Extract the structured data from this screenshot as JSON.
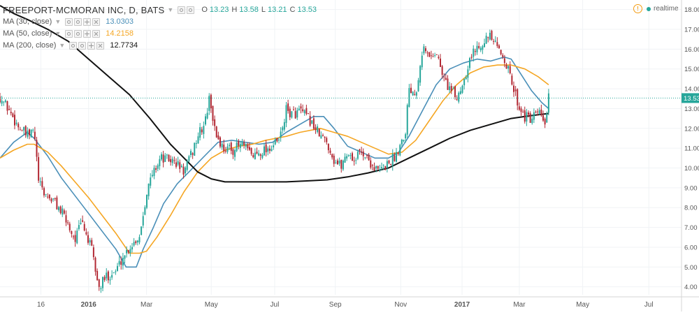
{
  "header": {
    "symbol_title": "FREEPORT-MCMORAN INC, D, BATS",
    "ohlc": [
      {
        "label": "O",
        "value": "13.23"
      },
      {
        "label": "H",
        "value": "13.58"
      },
      {
        "label": "L",
        "value": "13.21"
      },
      {
        "label": "C",
        "value": "13.53"
      }
    ],
    "status_icon": "warning-circle-icon",
    "status_text": "realtime"
  },
  "indicators": [
    {
      "label": "MA (30, close)",
      "value": "13.0303",
      "color": "#4a8fb8"
    },
    {
      "label": "MA (50, close)",
      "value": "14.2158",
      "color": "#f5a623"
    },
    {
      "label": "MA (200, close)",
      "value": "12.7734",
      "color": "#111111"
    }
  ],
  "colors": {
    "up": "#26a69a",
    "down": "#b22833",
    "price_line": "#26a69a",
    "axis_text": "#555555"
  },
  "chart_data": {
    "type": "candlestick",
    "last_price": 13.53,
    "price_label": "13.53",
    "y_axis": {
      "min": 3.6,
      "max": 18.2,
      "ticks": [
        "4.00",
        "5.00",
        "6.00",
        "7.00",
        "8.00",
        "9.00",
        "10.00",
        "11.00",
        "12.00",
        "13.00",
        "14.00",
        "15.00",
        "16.00",
        "17.00",
        "18.00"
      ]
    },
    "x_axis": {
      "ticks": [
        {
          "label": "16",
          "t": 0.06
        },
        {
          "label": "2016",
          "t": 0.13
        },
        {
          "label": "Mar",
          "t": 0.215
        },
        {
          "label": "May",
          "t": 0.31
        },
        {
          "label": "Jul",
          "t": 0.403
        },
        {
          "label": "Sep",
          "t": 0.492
        },
        {
          "label": "Nov",
          "t": 0.588
        },
        {
          "label": "2017",
          "t": 0.678
        },
        {
          "label": "Mar",
          "t": 0.762
        },
        {
          "label": "May",
          "t": 0.855
        },
        {
          "label": "Jul",
          "t": 0.952
        }
      ]
    },
    "close_path": [
      [
        0.0,
        13.6
      ],
      [
        0.012,
        13.0
      ],
      [
        0.025,
        12.2
      ],
      [
        0.04,
        11.6
      ],
      [
        0.05,
        11.9
      ],
      [
        0.057,
        9.2
      ],
      [
        0.065,
        8.7
      ],
      [
        0.08,
        8.3
      ],
      [
        0.095,
        7.5
      ],
      [
        0.11,
        6.4
      ],
      [
        0.12,
        7.3
      ],
      [
        0.135,
        5.8
      ],
      [
        0.145,
        3.9
      ],
      [
        0.155,
        4.5
      ],
      [
        0.17,
        4.8
      ],
      [
        0.18,
        5.5
      ],
      [
        0.19,
        6.0
      ],
      [
        0.205,
        6.6
      ],
      [
        0.215,
        8.8
      ],
      [
        0.225,
        9.8
      ],
      [
        0.235,
        10.5
      ],
      [
        0.25,
        10.4
      ],
      [
        0.26,
        10.2
      ],
      [
        0.27,
        9.8
      ],
      [
        0.28,
        10.6
      ],
      [
        0.29,
        11.6
      ],
      [
        0.3,
        12.2
      ],
      [
        0.308,
        13.6
      ],
      [
        0.315,
        11.9
      ],
      [
        0.325,
        11.1
      ],
      [
        0.34,
        10.9
      ],
      [
        0.355,
        11.2
      ],
      [
        0.37,
        10.6
      ],
      [
        0.385,
        10.9
      ],
      [
        0.4,
        11.1
      ],
      [
        0.41,
        11.4
      ],
      [
        0.42,
        12.9
      ],
      [
        0.43,
        12.7
      ],
      [
        0.44,
        12.9
      ],
      [
        0.455,
        12.4
      ],
      [
        0.47,
        11.6
      ],
      [
        0.48,
        11.3
      ],
      [
        0.49,
        10.4
      ],
      [
        0.5,
        10.1
      ],
      [
        0.51,
        10.8
      ],
      [
        0.52,
        10.4
      ],
      [
        0.53,
        10.9
      ],
      [
        0.545,
        10.2
      ],
      [
        0.555,
        9.8
      ],
      [
        0.565,
        10.1
      ],
      [
        0.58,
        10.6
      ],
      [
        0.595,
        11.9
      ],
      [
        0.6,
        14.1
      ],
      [
        0.61,
        13.8
      ],
      [
        0.62,
        16.1
      ],
      [
        0.63,
        15.6
      ],
      [
        0.64,
        15.9
      ],
      [
        0.65,
        14.6
      ],
      [
        0.66,
        14.0
      ],
      [
        0.67,
        13.5
      ],
      [
        0.68,
        14.4
      ],
      [
        0.69,
        15.6
      ],
      [
        0.7,
        16.1
      ],
      [
        0.71,
        16.5
      ],
      [
        0.72,
        16.6
      ],
      [
        0.73,
        16.0
      ],
      [
        0.74,
        15.6
      ],
      [
        0.75,
        14.4
      ],
      [
        0.76,
        13.3
      ],
      [
        0.765,
        12.9
      ],
      [
        0.77,
        12.6
      ],
      [
        0.78,
        12.4
      ],
      [
        0.785,
        12.6
      ],
      [
        0.79,
        12.8
      ],
      [
        0.795,
        12.5
      ],
      [
        0.8,
        12.2
      ],
      [
        0.805,
        13.5
      ]
    ],
    "ma_series": [
      {
        "name": "MA (30, close)",
        "color": "#4a8fb8",
        "width": 1.6,
        "points": [
          [
            0.0,
            10.5
          ],
          [
            0.02,
            11.3
          ],
          [
            0.04,
            11.8
          ],
          [
            0.05,
            11.5
          ],
          [
            0.07,
            10.6
          ],
          [
            0.09,
            9.5
          ],
          [
            0.11,
            8.6
          ],
          [
            0.13,
            7.7
          ],
          [
            0.15,
            6.8
          ],
          [
            0.17,
            5.9
          ],
          [
            0.185,
            5.0
          ],
          [
            0.2,
            5.0
          ],
          [
            0.21,
            5.9
          ],
          [
            0.225,
            7.0
          ],
          [
            0.24,
            8.2
          ],
          [
            0.26,
            9.2
          ],
          [
            0.28,
            9.9
          ],
          [
            0.3,
            10.6
          ],
          [
            0.32,
            11.3
          ],
          [
            0.34,
            11.4
          ],
          [
            0.36,
            11.3
          ],
          [
            0.38,
            11.2
          ],
          [
            0.4,
            11.3
          ],
          [
            0.42,
            11.8
          ],
          [
            0.44,
            12.2
          ],
          [
            0.46,
            12.6
          ],
          [
            0.475,
            12.6
          ],
          [
            0.49,
            12.0
          ],
          [
            0.51,
            11.1
          ],
          [
            0.53,
            10.8
          ],
          [
            0.55,
            10.5
          ],
          [
            0.57,
            10.5
          ],
          [
            0.585,
            10.8
          ],
          [
            0.6,
            11.6
          ],
          [
            0.62,
            12.9
          ],
          [
            0.64,
            14.2
          ],
          [
            0.66,
            15.0
          ],
          [
            0.68,
            15.3
          ],
          [
            0.7,
            15.5
          ],
          [
            0.72,
            15.4
          ],
          [
            0.74,
            15.6
          ],
          [
            0.75,
            15.5
          ],
          [
            0.765,
            14.7
          ],
          [
            0.78,
            13.9
          ],
          [
            0.795,
            13.3
          ],
          [
            0.805,
            13.0
          ]
        ]
      },
      {
        "name": "MA (50, close)",
        "color": "#f5a623",
        "width": 1.6,
        "points": [
          [
            0.0,
            10.5
          ],
          [
            0.02,
            10.9
          ],
          [
            0.04,
            11.2
          ],
          [
            0.05,
            11.2
          ],
          [
            0.07,
            10.8
          ],
          [
            0.09,
            10.1
          ],
          [
            0.11,
            9.3
          ],
          [
            0.13,
            8.5
          ],
          [
            0.15,
            7.6
          ],
          [
            0.17,
            6.7
          ],
          [
            0.19,
            5.7
          ],
          [
            0.205,
            5.7
          ],
          [
            0.215,
            5.8
          ],
          [
            0.23,
            6.5
          ],
          [
            0.25,
            7.6
          ],
          [
            0.27,
            8.8
          ],
          [
            0.29,
            9.8
          ],
          [
            0.31,
            10.5
          ],
          [
            0.33,
            10.9
          ],
          [
            0.35,
            11.1
          ],
          [
            0.37,
            11.2
          ],
          [
            0.39,
            11.4
          ],
          [
            0.42,
            11.6
          ],
          [
            0.44,
            11.8
          ],
          [
            0.47,
            12.0
          ],
          [
            0.49,
            11.8
          ],
          [
            0.51,
            11.6
          ],
          [
            0.53,
            11.3
          ],
          [
            0.55,
            11.0
          ],
          [
            0.57,
            10.7
          ],
          [
            0.59,
            10.8
          ],
          [
            0.61,
            11.4
          ],
          [
            0.63,
            12.4
          ],
          [
            0.65,
            13.4
          ],
          [
            0.67,
            14.2
          ],
          [
            0.69,
            14.8
          ],
          [
            0.71,
            15.1
          ],
          [
            0.73,
            15.2
          ],
          [
            0.75,
            15.2
          ],
          [
            0.77,
            15.0
          ],
          [
            0.79,
            14.6
          ],
          [
            0.805,
            14.2
          ]
        ]
      },
      {
        "name": "MA (200, close)",
        "color": "#111111",
        "width": 2.0,
        "points": [
          [
            0.0,
            18.2
          ],
          [
            0.02,
            17.8
          ],
          [
            0.04,
            17.5
          ],
          [
            0.07,
            17.0
          ],
          [
            0.1,
            16.4
          ],
          [
            0.13,
            15.5
          ],
          [
            0.16,
            14.6
          ],
          [
            0.19,
            13.7
          ],
          [
            0.22,
            12.5
          ],
          [
            0.25,
            11.2
          ],
          [
            0.27,
            10.5
          ],
          [
            0.29,
            9.8
          ],
          [
            0.31,
            9.45
          ],
          [
            0.33,
            9.3
          ],
          [
            0.36,
            9.3
          ],
          [
            0.39,
            9.3
          ],
          [
            0.42,
            9.3
          ],
          [
            0.45,
            9.35
          ],
          [
            0.48,
            9.4
          ],
          [
            0.51,
            9.55
          ],
          [
            0.54,
            9.75
          ],
          [
            0.57,
            10.0
          ],
          [
            0.6,
            10.5
          ],
          [
            0.63,
            11.0
          ],
          [
            0.66,
            11.5
          ],
          [
            0.69,
            11.9
          ],
          [
            0.72,
            12.2
          ],
          [
            0.75,
            12.5
          ],
          [
            0.78,
            12.65
          ],
          [
            0.805,
            12.75
          ]
        ]
      }
    ]
  }
}
